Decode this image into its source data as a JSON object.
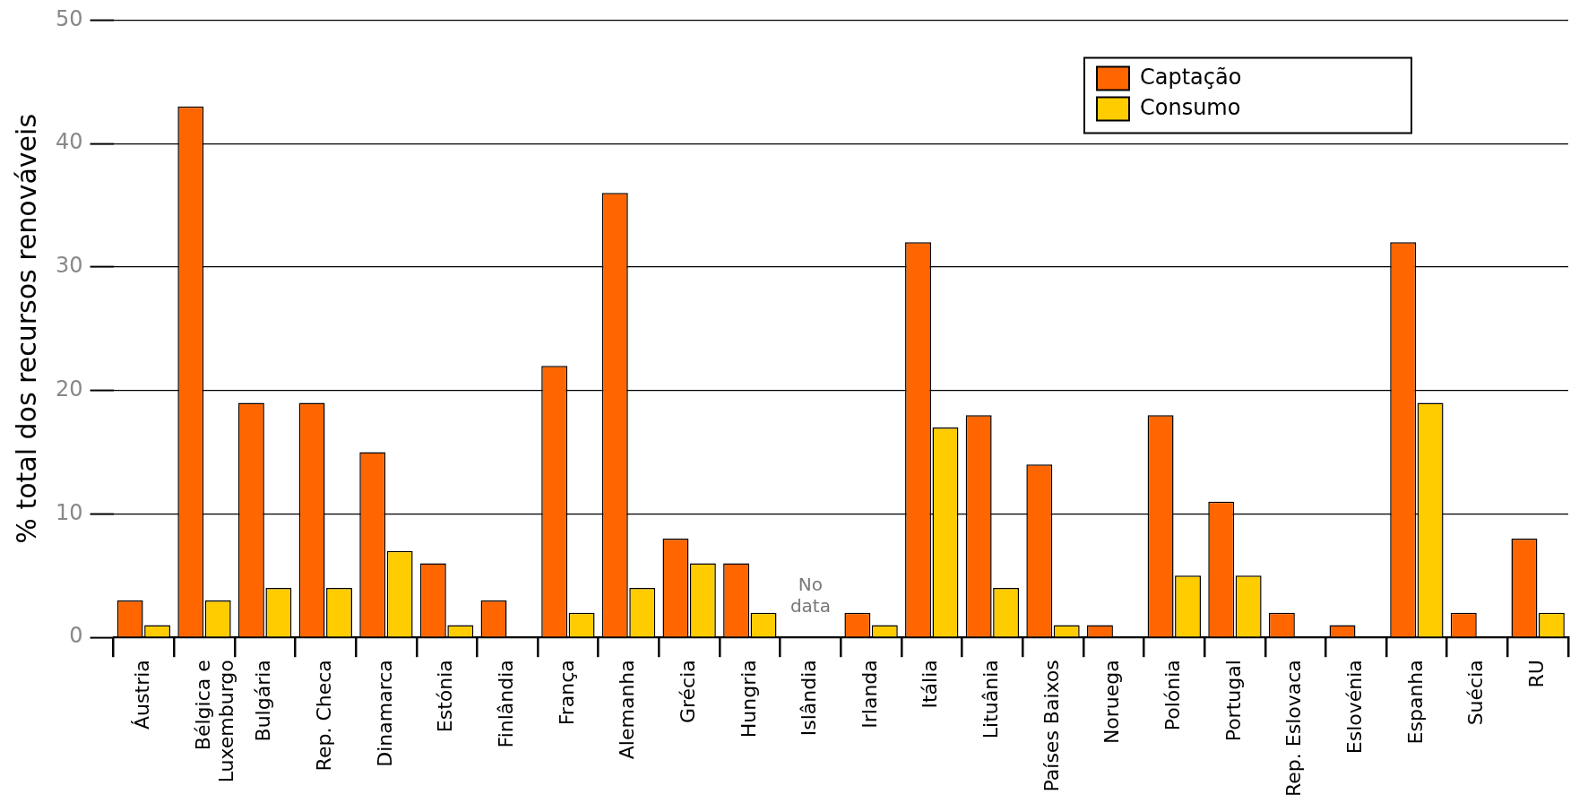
{
  "chart_data": {
    "type": "bar",
    "ylabel": "% total dos recursos renováveis",
    "categories": [
      "Áustria",
      "Bélgica e\nLuxemburgo",
      "Bulgária",
      "Rep. Checa",
      "Dinamarca",
      "Estónia",
      "Finlândia",
      "França",
      "Alemanha",
      "Grécia",
      "Hungria",
      "Islândia",
      "Irlanda",
      "Itália",
      "Lituânia",
      "Países Baixos",
      "Noruega",
      "Polónia",
      "Portugal",
      "Rep. Eslovaca",
      "Eslovénia",
      "Espanha",
      "Suécia",
      "RU"
    ],
    "series": [
      {
        "name": "Captação",
        "color": "#ff6600",
        "values": [
          3,
          43,
          19,
          19,
          15,
          6,
          3,
          22,
          36,
          8,
          6,
          null,
          2,
          32,
          18,
          14,
          1,
          18,
          11,
          2,
          1,
          32,
          2,
          8
        ]
      },
      {
        "name": "Consumo",
        "color": "#ffcc00",
        "values": [
          1,
          3,
          4,
          4,
          7,
          1,
          null,
          2,
          4,
          6,
          2,
          null,
          1,
          17,
          4,
          1,
          null,
          5,
          5,
          null,
          null,
          19,
          null,
          2
        ]
      }
    ],
    "ylim": [
      0,
      50
    ],
    "yticks": [
      0,
      10,
      20,
      30,
      40,
      50
    ],
    "grid": "y",
    "legend": "top right",
    "annotations": [
      "No data"
    ]
  }
}
